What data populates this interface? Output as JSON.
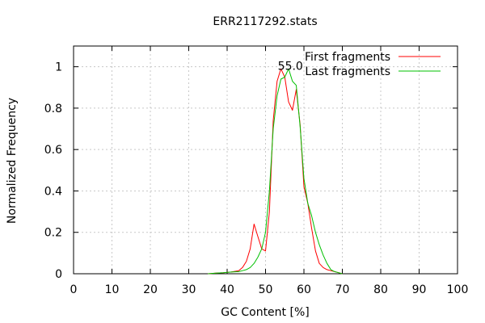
{
  "chart_data": {
    "type": "line",
    "title": "ERR2117292.stats",
    "xlabel": "GC Content [%]",
    "ylabel": "Normalized Frequency",
    "xlim": [
      0,
      100
    ],
    "ylim": [
      0,
      1.1
    ],
    "x_ticks": [
      0,
      10,
      20,
      30,
      40,
      50,
      60,
      70,
      80,
      90,
      100
    ],
    "y_ticks": [
      0,
      0.2,
      0.4,
      0.6,
      0.8,
      1
    ],
    "x_tick_labels": [
      "0",
      "10",
      "20",
      "30",
      "40",
      "50",
      "60",
      "70",
      "80",
      "90",
      "100"
    ],
    "y_tick_labels": [
      "0",
      "0.2",
      "0.4",
      "0.6",
      "0.8",
      "1"
    ],
    "grid": true,
    "legend_position": "top-right",
    "annotations": [
      {
        "text": "55.0",
        "x": 55,
        "y": 1.0
      }
    ],
    "series": [
      {
        "name": "First fragments",
        "color": "#ff0000",
        "x": [
          35,
          37,
          39,
          41,
          43,
          44,
          45,
          46,
          47,
          48,
          49,
          50,
          51,
          52,
          53,
          54,
          55,
          56,
          57,
          58,
          59,
          60,
          61,
          62,
          63,
          64,
          65,
          66,
          67,
          68,
          69,
          70
        ],
        "y": [
          0.0,
          0.003,
          0.005,
          0.008,
          0.015,
          0.03,
          0.06,
          0.12,
          0.24,
          0.18,
          0.12,
          0.11,
          0.3,
          0.74,
          0.93,
          0.99,
          0.95,
          0.83,
          0.79,
          0.89,
          0.72,
          0.42,
          0.34,
          0.22,
          0.11,
          0.05,
          0.03,
          0.02,
          0.015,
          0.01,
          0.005,
          0.0
        ]
      },
      {
        "name": "Last fragments",
        "color": "#00c000",
        "x": [
          35,
          37,
          39,
          41,
          43,
          44,
          45,
          46,
          47,
          48,
          49,
          50,
          51,
          52,
          53,
          54,
          55,
          56,
          57,
          58,
          59,
          60,
          61,
          62,
          63,
          64,
          65,
          66,
          67,
          68,
          69,
          70
        ],
        "y": [
          0.0,
          0.003,
          0.005,
          0.008,
          0.01,
          0.015,
          0.02,
          0.03,
          0.05,
          0.08,
          0.12,
          0.2,
          0.4,
          0.7,
          0.86,
          0.94,
          0.95,
          0.99,
          0.93,
          0.91,
          0.71,
          0.46,
          0.34,
          0.28,
          0.2,
          0.14,
          0.09,
          0.05,
          0.02,
          0.01,
          0.005,
          0.0
        ]
      }
    ]
  }
}
